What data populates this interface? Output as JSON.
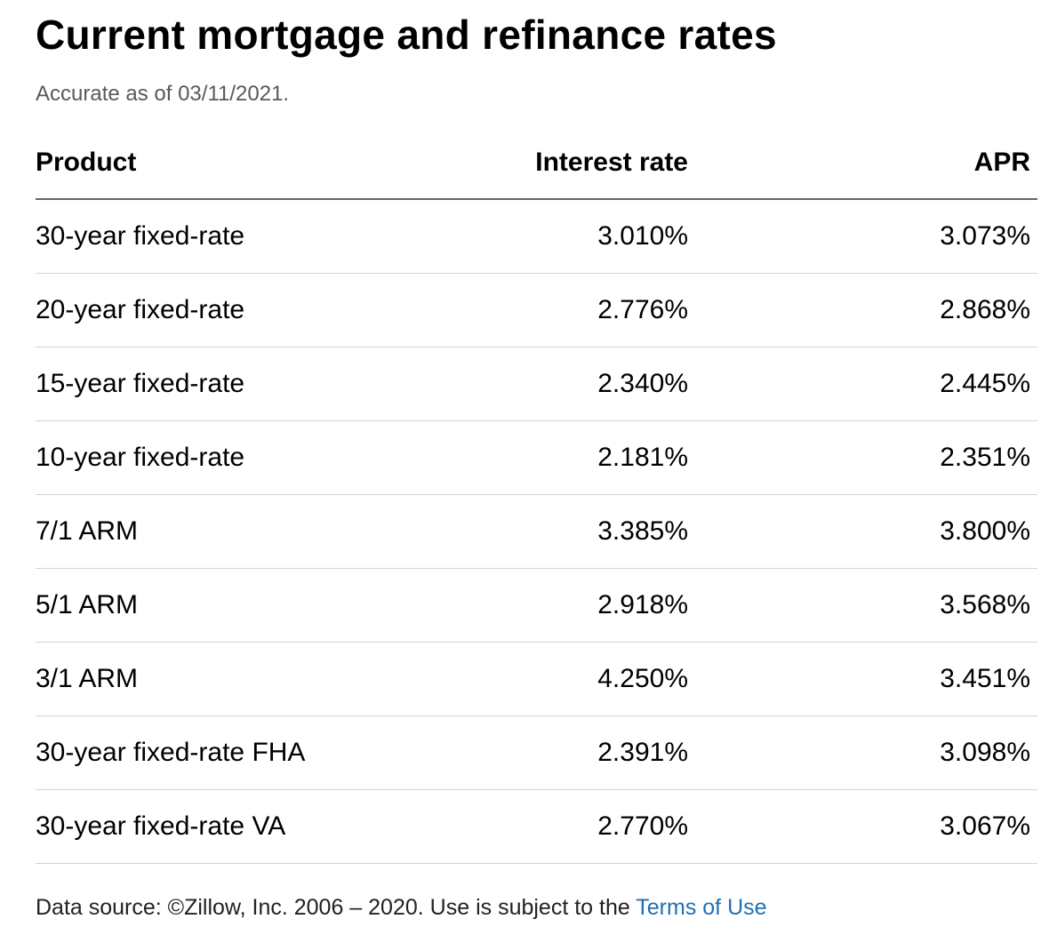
{
  "header": {
    "title": "Current mortgage and refinance rates",
    "subtitle": "Accurate as of 03/11/2021."
  },
  "table": {
    "columns": [
      "Product",
      "Interest rate",
      "APR"
    ],
    "rows": [
      {
        "product": "30-year fixed-rate",
        "interest_rate": "3.010%",
        "apr": "3.073%"
      },
      {
        "product": "20-year fixed-rate",
        "interest_rate": "2.776%",
        "apr": "2.868%"
      },
      {
        "product": "15-year fixed-rate",
        "interest_rate": "2.340%",
        "apr": "2.445%"
      },
      {
        "product": "10-year fixed-rate",
        "interest_rate": "2.181%",
        "apr": "2.351%"
      },
      {
        "product": "7/1 ARM",
        "interest_rate": "3.385%",
        "apr": "3.800%"
      },
      {
        "product": "5/1 ARM",
        "interest_rate": "2.918%",
        "apr": "3.568%"
      },
      {
        "product": "3/1 ARM",
        "interest_rate": "4.250%",
        "apr": "3.451%"
      },
      {
        "product": "30-year fixed-rate FHA",
        "interest_rate": "2.391%",
        "apr": "3.098%"
      },
      {
        "product": "30-year fixed-rate VA",
        "interest_rate": "2.770%",
        "apr": "3.067%"
      }
    ]
  },
  "footer": {
    "text": "Data source: ©Zillow, Inc. 2006 – 2020. Use is subject to the ",
    "link_label": "Terms of Use"
  },
  "colors": {
    "link": "#1f6fb5",
    "subtitle": "#595959",
    "header_rule": "#666666",
    "row_rule": "#d4d4d4"
  }
}
